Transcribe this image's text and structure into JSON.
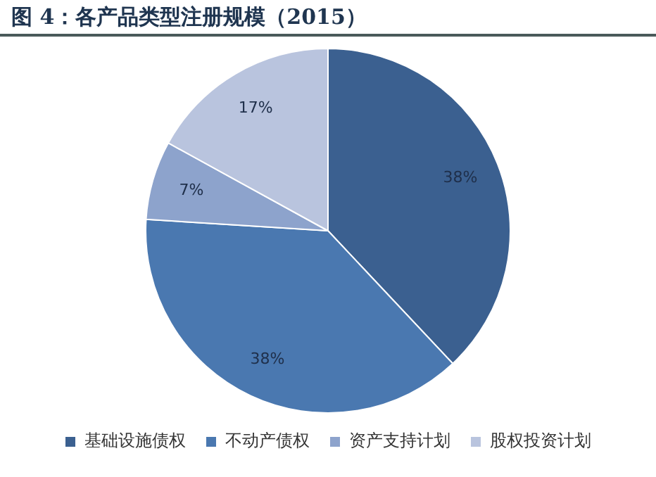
{
  "chart_data": {
    "type": "pie",
    "title": "图 4：各产品类型注册规模（2015）",
    "categories": [
      "基础设施债权",
      "不动产债权",
      "资产支持计划",
      "股权投资计划"
    ],
    "values": [
      38,
      38,
      7,
      17
    ],
    "colors": [
      "#3b6090",
      "#4a78b0",
      "#8da3cc",
      "#b9c4de"
    ],
    "value_labels": [
      "38%",
      "38%",
      "7%",
      "17%"
    ],
    "legend": "bottom"
  }
}
